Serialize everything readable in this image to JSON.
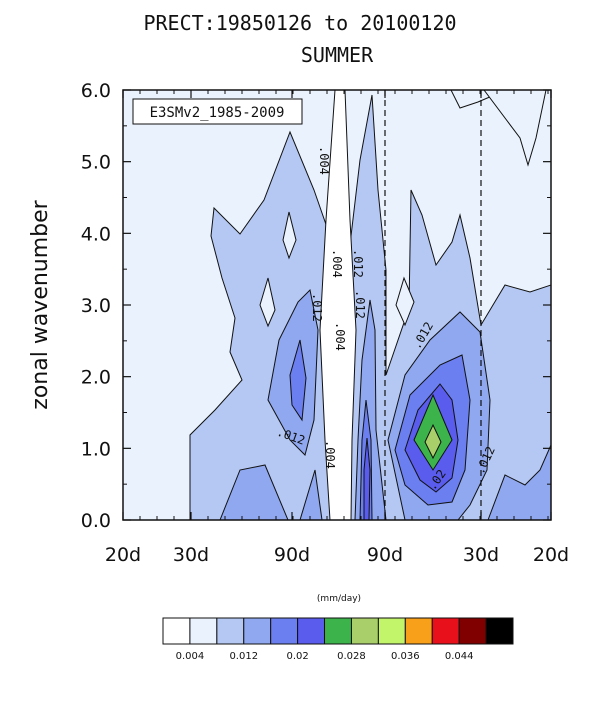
{
  "chart_data": {
    "type": "heatmap",
    "title": "PRECT:19850126 to 20100120",
    "subtitle": "SUMMER",
    "legend_label": "E3SMv2_1985-2009",
    "ylabel": "zonal wavenumber",
    "ylim": [
      0,
      6
    ],
    "yticks": [
      "0.0",
      "1.0",
      "2.0",
      "3.0",
      "4.0",
      "5.0",
      "6.0"
    ],
    "xticks": [
      "20d",
      "30d",
      "90d",
      "90d",
      "30d",
      "20d"
    ],
    "contour_labels": [
      ".004",
      ".004",
      ".004",
      ".004",
      ".012",
      ".012",
      ".012",
      ".012",
      ".012",
      ".012",
      ".012",
      ".02"
    ],
    "colorbar": {
      "units": "(mm/day)",
      "colors": [
        "#ffffff",
        "#eaf3fd",
        "#b4c8f3",
        "#8fa8ef",
        "#6b7ff0",
        "#5a5cee",
        "#3cb44b",
        "#a9cf6a",
        "#c3f56a",
        "#f9a01a",
        "#e8101a",
        "#800000",
        "#000000"
      ],
      "tick_labels": [
        "0.004",
        "0.012",
        "0.02",
        "0.028",
        "0.036",
        "0.044"
      ]
    }
  }
}
